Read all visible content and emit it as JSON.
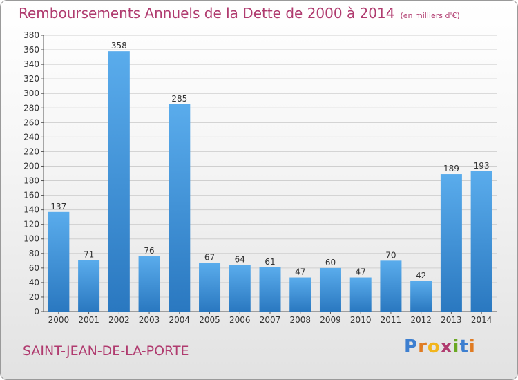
{
  "chart_data": {
    "type": "bar",
    "title": "Remboursements Annuels de la Dette de 2000 à 2014",
    "subtitle": "(en milliers d'€)",
    "categories": [
      "2000",
      "2001",
      "2002",
      "2003",
      "2004",
      "2005",
      "2006",
      "2007",
      "2008",
      "2009",
      "2010",
      "2011",
      "2012",
      "2013",
      "2014"
    ],
    "values": [
      137,
      71,
      358,
      76,
      285,
      67,
      64,
      61,
      47,
      60,
      47,
      70,
      42,
      189,
      193
    ],
    "ylim": [
      0,
      380
    ],
    "ytick_step": 20,
    "xlabel": "",
    "ylabel": "",
    "grid": true,
    "bar_color": "#3a8fd8",
    "label_color": "#333333"
  },
  "footer": {
    "commune": "SAINT-JEAN-DE-LA-PORTE",
    "logo_letters": [
      "P",
      "r",
      "o",
      "x",
      "i",
      "t",
      "i"
    ],
    "logo_colors": [
      "#3d7fd0",
      "#e07b22",
      "#f2b51c",
      "#b03b6f",
      "#6aa823",
      "#3d7fd0",
      "#e07b22"
    ]
  }
}
